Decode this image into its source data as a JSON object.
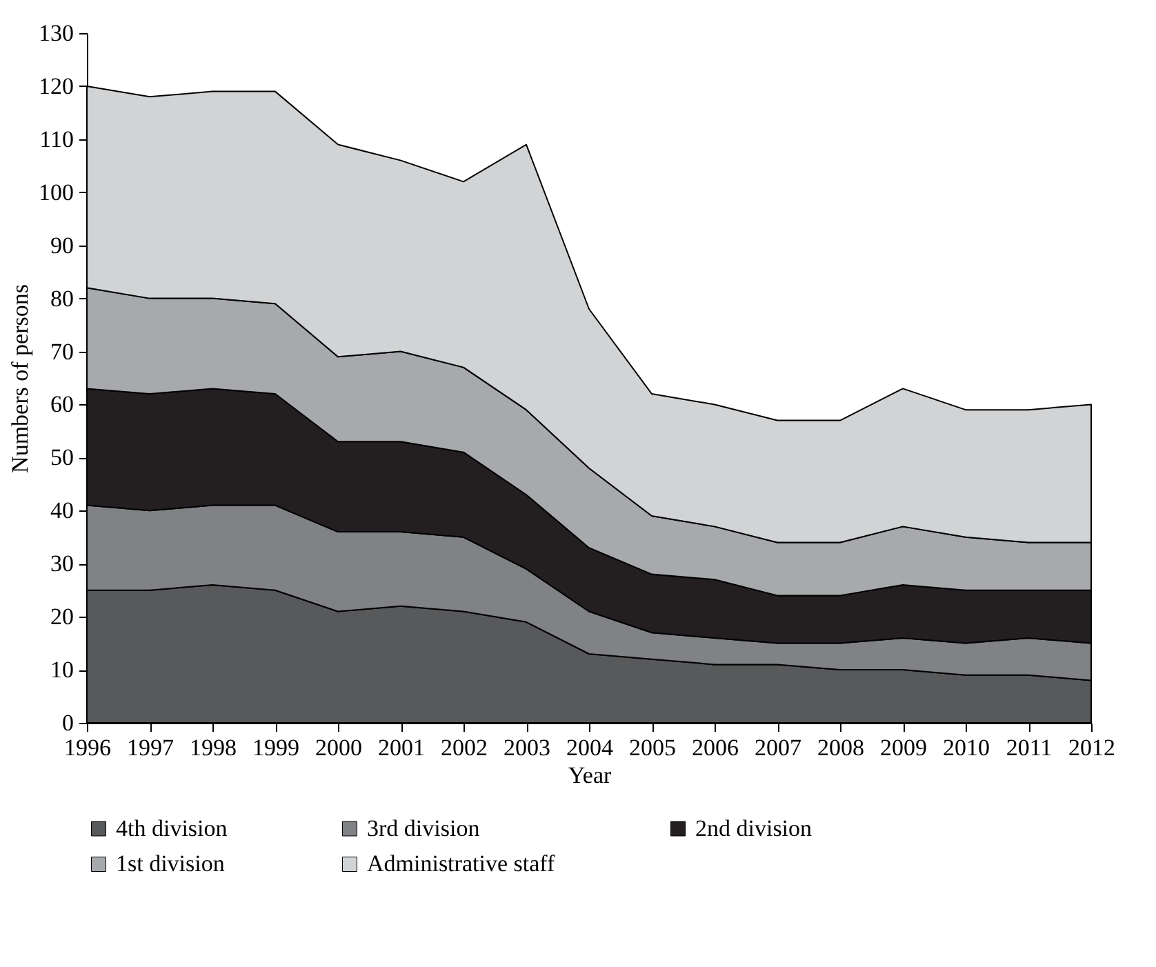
{
  "chart_data": {
    "type": "area",
    "stacked": true,
    "xlabel": "Year",
    "ylabel": "Numbers of persons",
    "x": [
      1996,
      1997,
      1998,
      1999,
      2000,
      2001,
      2002,
      2003,
      2004,
      2005,
      2006,
      2007,
      2008,
      2009,
      2010,
      2011,
      2012
    ],
    "xlim": [
      1996,
      2012
    ],
    "xticks": [
      1996,
      1997,
      1998,
      1999,
      2000,
      2001,
      2002,
      2003,
      2004,
      2005,
      2006,
      2007,
      2008,
      2009,
      2010,
      2011,
      2012
    ],
    "ylim": [
      0,
      130
    ],
    "yticks": [
      0,
      10,
      20,
      30,
      40,
      50,
      60,
      70,
      80,
      90,
      100,
      110,
      120,
      130
    ],
    "legend": "bottom",
    "grid": false,
    "series": [
      {
        "name": "4th division",
        "color": "#58595b",
        "values": [
          25,
          25,
          26,
          25,
          21,
          22,
          21,
          19,
          13,
          12,
          11,
          11,
          10,
          10,
          9,
          9,
          8
        ]
      },
      {
        "name": "3rd division",
        "color": "#808285",
        "values": [
          16,
          15,
          15,
          16,
          15,
          14,
          14,
          10,
          8,
          5,
          5,
          4,
          5,
          6,
          6,
          7,
          7
        ]
      },
      {
        "name": "2nd division",
        "color": "#231f20",
        "values": [
          22,
          22,
          22,
          21,
          17,
          17,
          16,
          14,
          12,
          11,
          11,
          9,
          9,
          10,
          10,
          9,
          10
        ]
      },
      {
        "name": "1st division",
        "color": "#a7a9ac",
        "values": [
          19,
          18,
          17,
          17,
          16,
          17,
          16,
          16,
          15,
          11,
          10,
          10,
          10,
          11,
          10,
          9,
          9
        ]
      },
      {
        "name": "Administrative staff",
        "color": "#d1d3d4",
        "values": [
          38,
          38,
          39,
          40,
          40,
          36,
          35,
          50,
          30,
          23,
          23,
          23,
          23,
          26,
          24,
          25,
          26
        ]
      }
    ]
  }
}
